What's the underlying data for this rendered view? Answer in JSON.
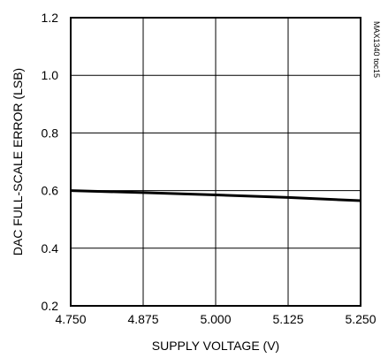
{
  "chart_data": {
    "type": "line",
    "title": "",
    "xlabel": "SUPPLY VOLTAGE (V)",
    "ylabel": "DAC FULL-SCALE ERROR (LSB)",
    "xlim": [
      4.75,
      5.25
    ],
    "ylim": [
      0.2,
      1.2
    ],
    "x_ticks": [
      "4.750",
      "4.875",
      "5.000",
      "5.125",
      "5.250"
    ],
    "y_ticks": [
      "0.2",
      "0.4",
      "0.6",
      "0.8",
      "1.0",
      "1.2"
    ],
    "grid": true,
    "series": [
      {
        "x": [
          4.75,
          4.875,
          5.0,
          5.125,
          5.25
        ],
        "y": [
          0.6,
          0.593,
          0.585,
          0.576,
          0.565
        ]
      }
    ],
    "annotation": "MAX1340 toc15"
  }
}
